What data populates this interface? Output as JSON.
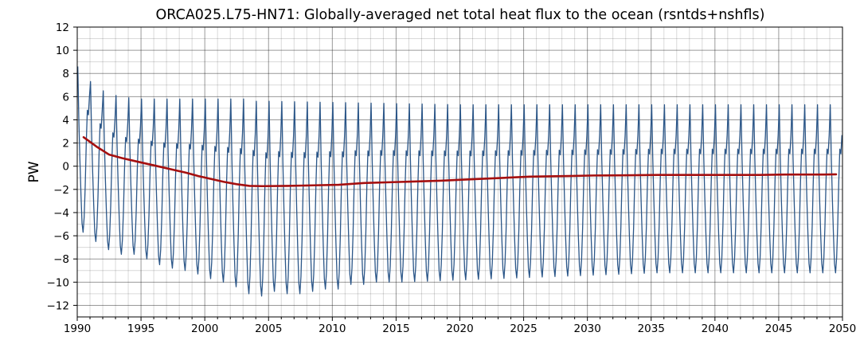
{
  "chart_data": {
    "type": "line",
    "title": "ORCA025.L75-HN71: Globally-averaged net total heat flux to the ocean (rsntds+nshfls)",
    "xlabel": "",
    "ylabel": "PW",
    "xlim": [
      1990,
      2050
    ],
    "ylim": [
      -13,
      12
    ],
    "xticks": [
      1990,
      1995,
      2000,
      2005,
      2010,
      2015,
      2020,
      2025,
      2030,
      2035,
      2040,
      2045,
      2050
    ],
    "yticks": [
      -12,
      -10,
      -8,
      -6,
      -4,
      -2,
      0,
      2,
      4,
      6,
      8,
      10,
      12
    ],
    "grid": true,
    "colors": {
      "monthly": "#2b5688",
      "annual": "#a50f0f"
    },
    "monthly_series": {
      "start_year": 1990,
      "seasonal_cycle": [
        8.6,
        4.0,
        0.5,
        -2.5,
        -5.0,
        -5.8,
        -4.5,
        -1.8,
        2.0,
        4.8,
        4.4,
        6.0
      ],
      "peaks": [
        [
          1990,
          8.6
        ],
        [
          1991,
          7.3
        ],
        [
          1992,
          6.5
        ],
        [
          1993,
          6.1
        ],
        [
          1994,
          5.9
        ],
        [
          1995,
          5.8
        ],
        [
          1996,
          5.8
        ],
        [
          1997,
          5.8
        ],
        [
          1998,
          5.8
        ],
        [
          1999,
          5.8
        ],
        [
          2000,
          5.8
        ],
        [
          2001,
          5.8
        ],
        [
          2002,
          5.8
        ],
        [
          2003,
          5.8
        ],
        [
          2004,
          5.6
        ],
        [
          2005,
          5.6
        ],
        [
          2010,
          5.5
        ],
        [
          2020,
          5.3
        ],
        [
          2030,
          5.3
        ],
        [
          2040,
          5.3
        ],
        [
          2050,
          5.3
        ]
      ],
      "troughs": [
        [
          1990,
          -5.7
        ],
        [
          1991,
          -6.5
        ],
        [
          1992,
          -7.2
        ],
        [
          1993,
          -7.6
        ],
        [
          1994,
          -7.6
        ],
        [
          1995,
          -8.0
        ],
        [
          1996,
          -8.5
        ],
        [
          1997,
          -8.8
        ],
        [
          1998,
          -9.0
        ],
        [
          1999,
          -9.3
        ],
        [
          2000,
          -9.7
        ],
        [
          2001,
          -10.0
        ],
        [
          2002,
          -10.4
        ],
        [
          2003,
          -11.0
        ],
        [
          2004,
          -11.2
        ],
        [
          2005,
          -10.8
        ],
        [
          2006,
          -11.0
        ],
        [
          2007,
          -11.0
        ],
        [
          2008,
          -10.8
        ],
        [
          2009,
          -10.6
        ],
        [
          2010,
          -10.6
        ],
        [
          2011,
          -10.2
        ],
        [
          2012,
          -10.2
        ],
        [
          2013,
          -10.0
        ],
        [
          2015,
          -10.0
        ],
        [
          2020,
          -9.8
        ],
        [
          2025,
          -9.6
        ],
        [
          2030,
          -9.4
        ],
        [
          2035,
          -9.2
        ],
        [
          2040,
          -9.2
        ],
        [
          2045,
          -9.2
        ],
        [
          2049,
          -9.2
        ]
      ]
    },
    "annual_mean": {
      "x": [
        1990.5,
        1991.5,
        1992.5,
        1993.5,
        1994.5,
        1995.5,
        1996.5,
        1997.5,
        1998.5,
        1999.5,
        2000.5,
        2001.5,
        2002.5,
        2003.5,
        2004.5,
        2006.5,
        2008.5,
        2010.5,
        2012.5,
        2015.5,
        2018.5,
        2020.5,
        2023.5,
        2025.5,
        2028.5,
        2030.5,
        2033.5,
        2035.5,
        2038.5,
        2040.5,
        2043.5,
        2045.5,
        2048.5,
        2049.5
      ],
      "y": [
        2.5,
        1.7,
        1.0,
        0.7,
        0.45,
        0.2,
        -0.05,
        -0.3,
        -0.55,
        -0.85,
        -1.1,
        -1.35,
        -1.55,
        -1.7,
        -1.72,
        -1.7,
        -1.65,
        -1.6,
        -1.45,
        -1.35,
        -1.25,
        -1.15,
        -1.0,
        -0.9,
        -0.85,
        -0.8,
        -0.78,
        -0.75,
        -0.75,
        -0.75,
        -0.75,
        -0.72,
        -0.72,
        -0.7
      ]
    }
  }
}
